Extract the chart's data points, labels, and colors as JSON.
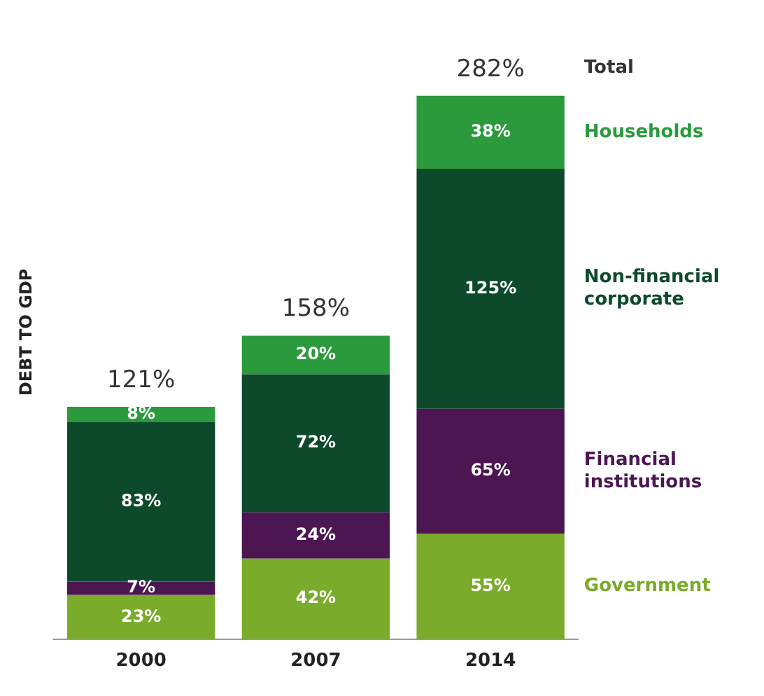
{
  "chart_data": {
    "type": "bar",
    "stacked": true,
    "ylabel": "DEBT TO GDP",
    "categories": [
      "2000",
      "2007",
      "2014"
    ],
    "series": [
      {
        "name": "Government",
        "color": "#7aab2a",
        "values": [
          23,
          42,
          55
        ],
        "value_labels": [
          "23%",
          "42%",
          "55%"
        ]
      },
      {
        "name": "Financial institutions",
        "color": "#4b1652",
        "values": [
          7,
          24,
          65
        ],
        "value_labels": [
          "7%",
          "24%",
          "65%"
        ]
      },
      {
        "name": "Non-financial corporate",
        "color": "#0d4a2c",
        "values": [
          83,
          72,
          125
        ],
        "value_labels": [
          "83%",
          "72%",
          "125%"
        ]
      },
      {
        "name": "Households",
        "color": "#2a9a3c",
        "values": [
          8,
          20,
          38
        ],
        "value_labels": [
          "8%",
          "20%",
          "38%"
        ]
      }
    ],
    "totals": [
      "121%",
      "158%",
      "282%"
    ],
    "annotations": [
      "Total"
    ],
    "grid": false
  }
}
